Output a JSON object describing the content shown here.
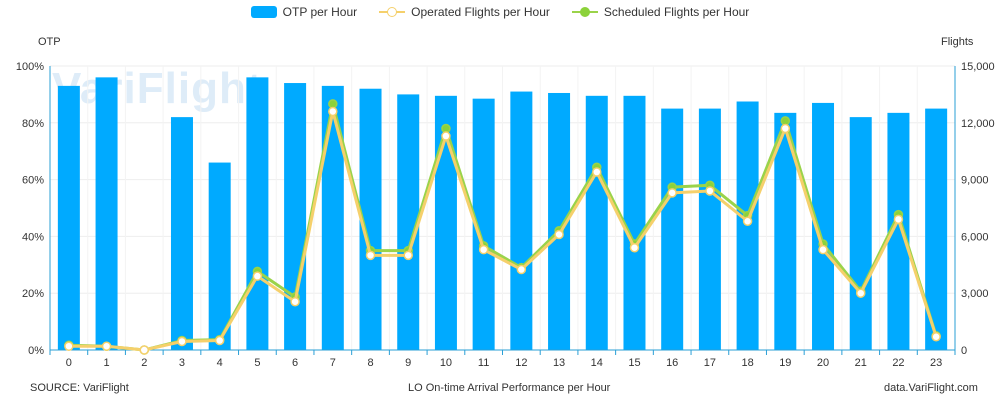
{
  "legend": {
    "otp": "OTP per Hour",
    "operated": "Operated Flights per Hour",
    "scheduled": "Scheduled Flights per Hour"
  },
  "watermark": "VariFlight",
  "footer": {
    "source": "SOURCE: VariFlight",
    "title": "LO  On-time Arrival Performance per Hour",
    "site": "data.VariFlight.com"
  },
  "colors": {
    "bar": "#00aaff",
    "operated": "#f5d06b",
    "scheduled": "#9ad34a",
    "grid": "#eeeeee",
    "axis": "#2a9fd6"
  },
  "chart_data": {
    "type": "bar",
    "categories": [
      "0",
      "1",
      "2",
      "3",
      "4",
      "5",
      "6",
      "7",
      "8",
      "9",
      "10",
      "11",
      "12",
      "13",
      "14",
      "15",
      "16",
      "17",
      "18",
      "19",
      "20",
      "21",
      "22",
      "23"
    ],
    "ylabel_left": "OTP",
    "ylabel_right": "Flights",
    "left_axis": {
      "min": 0,
      "max": 100,
      "ticks": [
        "0%",
        "20%",
        "40%",
        "60%",
        "80%",
        "100%"
      ]
    },
    "right_axis": {
      "min": 0,
      "max": 15000,
      "ticks": [
        "0",
        "3,000",
        "6,000",
        "9,000",
        "12,000",
        "15,000"
      ]
    },
    "series": [
      {
        "name": "OTP per Hour",
        "type": "bar",
        "axis": "left",
        "values": [
          93,
          96,
          null,
          82,
          66,
          96,
          94,
          93,
          92,
          90,
          89.5,
          88.5,
          91,
          90.5,
          89.5,
          89.5,
          85,
          85,
          87.5,
          83.5,
          87,
          82,
          83.5,
          85
        ]
      },
      {
        "name": "Operated Flights per Hour",
        "type": "line",
        "axis": "right",
        "values": [
          200,
          200,
          0,
          450,
          500,
          3900,
          2550,
          12600,
          5000,
          5000,
          11300,
          5300,
          4250,
          6100,
          9400,
          5400,
          8300,
          8400,
          6800,
          11700,
          5300,
          3000,
          6900,
          700
        ]
      },
      {
        "name": "Scheduled Flights per Hour",
        "type": "line",
        "axis": "right",
        "values": [
          250,
          200,
          0,
          500,
          550,
          4150,
          2800,
          13000,
          5250,
          5250,
          11700,
          5500,
          4350,
          6300,
          9650,
          5600,
          8600,
          8700,
          7100,
          12100,
          5600,
          3100,
          7150,
          750
        ]
      }
    ],
    "grid": true,
    "legend_position": "top-center"
  }
}
